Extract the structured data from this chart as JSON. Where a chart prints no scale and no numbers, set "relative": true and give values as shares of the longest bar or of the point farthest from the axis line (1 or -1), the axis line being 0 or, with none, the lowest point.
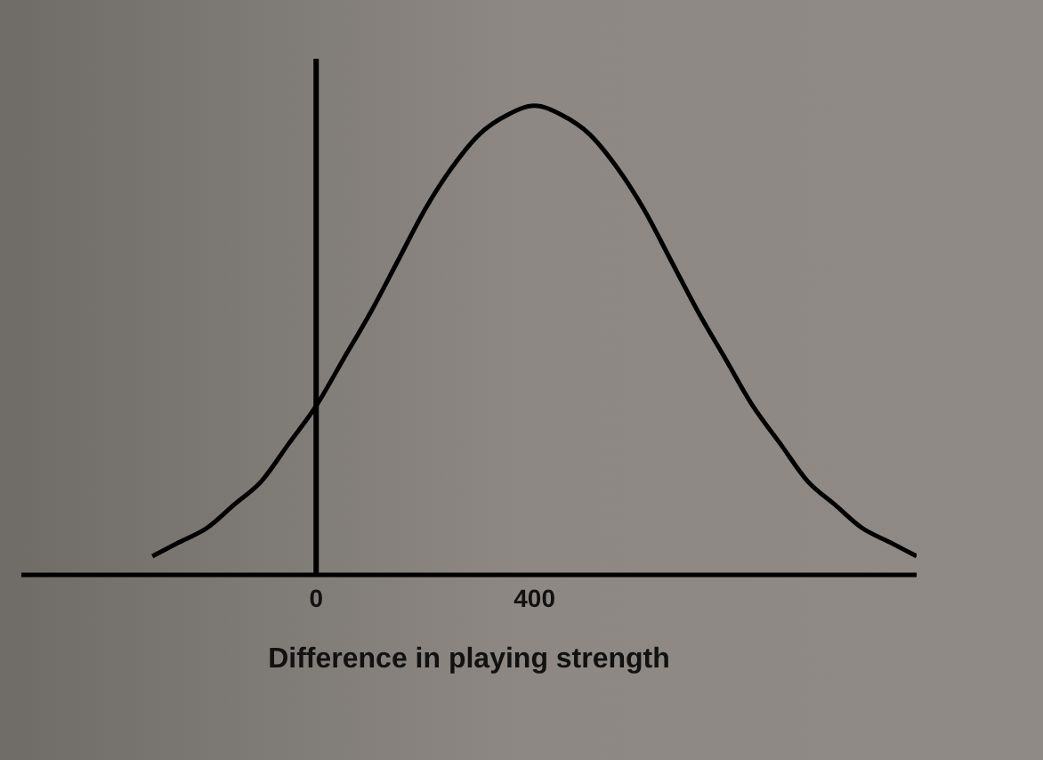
{
  "chart_data": {
    "type": "line",
    "relative": true,
    "xlabel": "Difference in playing strength",
    "x": [
      -300,
      -250,
      -200,
      -150,
      -100,
      -50,
      0,
      50,
      100,
      150,
      200,
      250,
      300,
      350,
      400,
      450,
      500,
      550,
      600,
      650,
      700,
      750,
      800,
      850,
      900,
      950,
      1000,
      1050,
      1100
    ],
    "series": [
      {
        "color": "#000000",
        "values": [
          0.04,
          0.07,
          0.1,
          0.15,
          0.2,
          0.28,
          0.36,
          0.46,
          0.56,
          0.67,
          0.78,
          0.87,
          0.94,
          0.98,
          1,
          0.98,
          0.94,
          0.87,
          0.78,
          0.67,
          0.56,
          0.46,
          0.36,
          0.28,
          0.2,
          0.15,
          0.1,
          0.07,
          0.04
        ]
      }
    ],
    "xlim": [
      -540,
      1100
    ],
    "xticks": [
      0,
      400
    ],
    "ref_lines": [
      {
        "axis": "x",
        "value": 0,
        "color": "#000000"
      }
    ],
    "grid": false,
    "legend": false,
    "marker": "none",
    "line_style": "solid",
    "tick_labels": "x"
  }
}
